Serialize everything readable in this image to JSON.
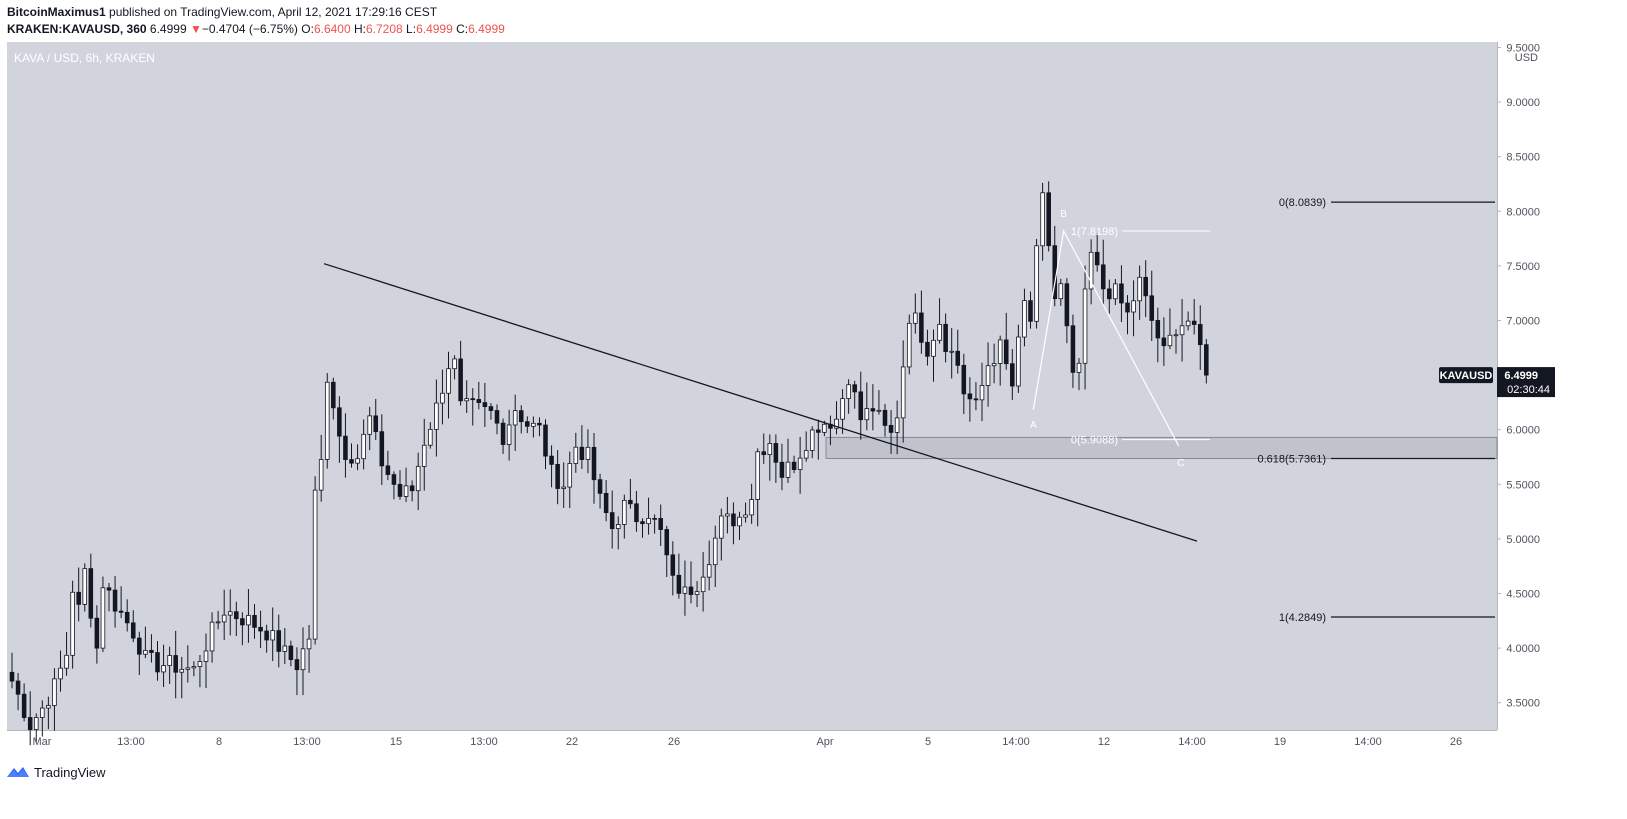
{
  "header": {
    "author": "BitcoinMaximus1",
    "published": " published on TradingView.com, April 12, 2021 17:29:16 CEST",
    "symbol": "KRAKEN:KAVAUSD, 360",
    "last": "6.4999",
    "arrow": "▼",
    "change": "−0.4704 (−6.75%)",
    "o_label": "O:",
    "o_value": "6.6400",
    "h_label": "H:",
    "h_value": "6.7208",
    "l_label": "L:",
    "l_value": "6.4999",
    "c_label": "C:",
    "c_value": "6.4999"
  },
  "chart_title": "KAVA / USD, 6h, KRAKEN",
  "footer": {
    "brand": "TradingView",
    "logo_icon": "tradingview-logo-icon"
  },
  "colors": {
    "background": "#d1d4dc",
    "up_body": "#ffffff",
    "down_body": "#131722",
    "wick": "#131722",
    "accent_red": "#ef5350"
  },
  "chart_data": {
    "type": "candlestick",
    "title": "KAVA / USD, 6h, KRAKEN",
    "y_unit": "USD",
    "y_ticks": [
      "9.5000",
      "9.0000",
      "8.5000",
      "8.0000",
      "7.5000",
      "7.0000",
      "6.5000",
      "6.0000",
      "5.5000",
      "5.0000",
      "4.5000",
      "4.0000",
      "3.5000"
    ],
    "x_ticks": [
      "Mar",
      "13:00",
      "8",
      "13:00",
      "15",
      "13:00",
      "22",
      "26",
      "Apr",
      "5",
      "14:00",
      "12",
      "14:00",
      "19",
      "14:00",
      "26"
    ],
    "ylim": [
      3.25,
      9.55
    ],
    "date_start": "2021-02-26T00:00Z",
    "candle_interval_hours": 6,
    "close_path": [
      [
        0,
        3.7
      ],
      [
        3,
        3.3
      ],
      [
        5,
        3.45
      ],
      [
        7,
        3.65
      ],
      [
        9,
        3.95
      ],
      [
        10,
        4.55
      ],
      [
        11,
        4.35
      ],
      [
        12,
        4.7
      ],
      [
        14,
        4.0
      ],
      [
        15,
        4.6
      ],
      [
        17,
        4.4
      ],
      [
        20,
        4.15
      ],
      [
        22,
        3.9
      ],
      [
        24,
        3.85
      ],
      [
        26,
        3.85
      ],
      [
        28,
        3.82
      ],
      [
        30,
        3.8
      ],
      [
        33,
        4.15
      ],
      [
        35,
        4.35
      ],
      [
        37,
        4.3
      ],
      [
        39,
        4.25
      ],
      [
        42,
        4.15
      ],
      [
        45,
        3.95
      ],
      [
        47,
        3.85
      ],
      [
        49,
        4.1
      ],
      [
        50,
        5.4
      ],
      [
        51,
        5.7
      ],
      [
        52,
        6.5
      ],
      [
        53,
        6.25
      ],
      [
        54,
        5.95
      ],
      [
        55,
        5.8
      ],
      [
        57,
        5.75
      ],
      [
        59,
        6.1
      ],
      [
        61,
        5.7
      ],
      [
        63,
        5.5
      ],
      [
        64,
        5.4
      ],
      [
        66,
        5.45
      ],
      [
        68,
        5.9
      ],
      [
        70,
        6.2
      ],
      [
        72,
        6.6
      ],
      [
        73,
        6.6
      ],
      [
        74,
        6.2
      ],
      [
        76,
        6.2
      ],
      [
        79,
        6.15
      ],
      [
        81,
        5.95
      ],
      [
        83,
        6.2
      ],
      [
        85,
        6.05
      ],
      [
        87,
        6.0
      ],
      [
        89,
        5.6
      ],
      [
        91,
        5.5
      ],
      [
        93,
        5.85
      ],
      [
        95,
        5.75
      ],
      [
        97,
        5.35
      ],
      [
        99,
        5.1
      ],
      [
        101,
        5.3
      ],
      [
        103,
        5.2
      ],
      [
        105,
        5.25
      ],
      [
        107,
        5.05
      ],
      [
        109,
        4.6
      ],
      [
        111,
        4.5
      ],
      [
        113,
        4.6
      ],
      [
        115,
        4.85
      ],
      [
        117,
        5.15
      ],
      [
        120,
        5.2
      ],
      [
        122,
        5.4
      ],
      [
        123,
        5.8
      ],
      [
        125,
        5.9
      ],
      [
        127,
        5.6
      ],
      [
        129,
        5.7
      ],
      [
        131,
        5.9
      ],
      [
        133,
        6.05
      ],
      [
        136,
        6.1
      ],
      [
        138,
        6.5
      ],
      [
        140,
        6.1
      ],
      [
        142,
        6.2
      ],
      [
        144,
        6.0
      ],
      [
        145,
        5.95
      ],
      [
        146,
        6.15
      ],
      [
        147,
        6.6
      ],
      [
        148,
        7.05
      ],
      [
        149,
        7.0
      ],
      [
        151,
        6.75
      ],
      [
        153,
        7.0
      ],
      [
        154,
        6.8
      ],
      [
        156,
        6.6
      ],
      [
        157,
        6.35
      ],
      [
        159,
        6.2
      ],
      [
        161,
        6.6
      ],
      [
        163,
        6.75
      ],
      [
        165,
        6.4
      ],
      [
        167,
        7.15
      ],
      [
        168,
        7.0
      ],
      [
        169,
        7.6
      ],
      [
        170,
        8.1
      ],
      [
        171,
        7.7
      ],
      [
        172,
        7.2
      ],
      [
        173,
        7.3
      ],
      [
        174,
        6.9
      ],
      [
        175,
        6.45
      ],
      [
        176,
        6.6
      ],
      [
        177,
        7.2
      ],
      [
        178,
        7.6
      ],
      [
        179,
        7.45
      ],
      [
        180,
        7.3
      ],
      [
        182,
        7.25
      ],
      [
        184,
        7.05
      ],
      [
        186,
        7.35
      ],
      [
        188,
        7.0
      ],
      [
        190,
        6.7
      ],
      [
        192,
        6.95
      ],
      [
        194,
        7.0
      ],
      [
        196,
        6.75
      ],
      [
        197,
        6.5
      ]
    ],
    "annotations": [
      {
        "type": "trendline",
        "points": [
          [
            "2021-03-10",
            7.52
          ],
          [
            "2021-04-15",
            4.98
          ]
        ]
      },
      {
        "type": "wave",
        "labels": [
          "A",
          "B",
          "C"
        ],
        "points": [
          [
            "2021-04-08T06:00Z",
            6.18
          ],
          [
            "2021-04-09T12:00Z",
            7.82
          ],
          [
            "2021-04-14T06:00Z",
            5.85
          ]
        ]
      },
      {
        "type": "fib_level",
        "label": "0(8.0839)",
        "value": 8.0839
      },
      {
        "type": "fib_level",
        "label": "0.618(5.7361)",
        "value": 5.7361
      },
      {
        "type": "fib_level",
        "label": "1(4.2849)",
        "value": 4.2849
      },
      {
        "type": "fib_level",
        "label": "1(7.8198)",
        "value": 7.8198
      },
      {
        "type": "fib_level",
        "label": "0(5.9088)",
        "value": 5.9088
      },
      {
        "type": "support_zone",
        "y_range": [
          5.7361,
          5.93
        ]
      }
    ],
    "last_price": {
      "symbol": "KAVAUSD",
      "value": "6.4999",
      "countdown": "02:30:44"
    }
  }
}
